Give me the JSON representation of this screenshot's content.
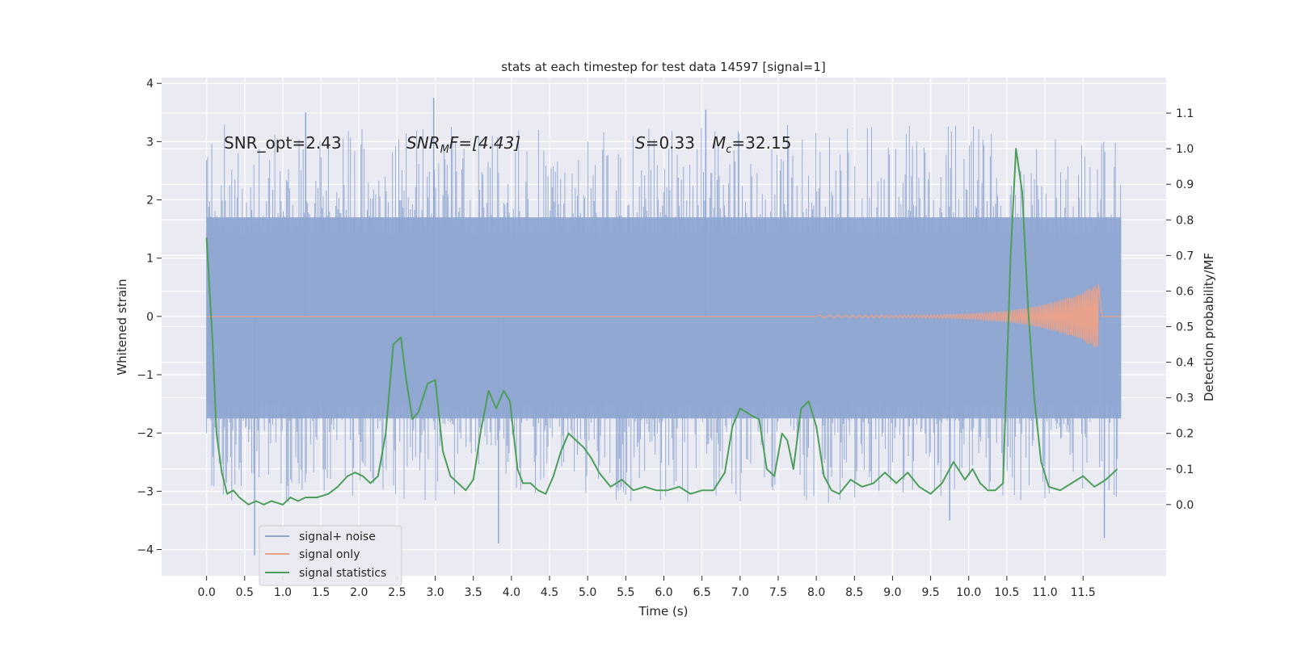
{
  "chart_data": {
    "type": "line",
    "title": "stats at each timestep for test data 14597 [signal=1]",
    "xlabel": "Time (s)",
    "ylabel": "Whitened strain",
    "ylabel_right": "Detection probability/MF",
    "xlim": [
      -0.59,
      12.59
    ],
    "ylim": [
      -4.45,
      4.1
    ],
    "ylim_right": [
      -0.2,
      1.2
    ],
    "xticks": [
      "0.0",
      "0.5",
      "1.0",
      "1.5",
      "2.0",
      "2.5",
      "3.0",
      "3.5",
      "4.0",
      "4.5",
      "5.0",
      "5.5",
      "6.0",
      "6.5",
      "7.0",
      "7.5",
      "8.0",
      "8.5",
      "9.0",
      "9.5",
      "10.0",
      "10.5",
      "11.0",
      "11.5"
    ],
    "yticks": [
      "4",
      "3",
      "2",
      "1",
      "0",
      "−1",
      "−2",
      "−3",
      "−4"
    ],
    "yticks_right": [
      "1.1",
      "1.0",
      "0.9",
      "0.8",
      "0.7",
      "0.6",
      "0.5",
      "0.4",
      "0.3",
      "0.2",
      "0.1",
      "0.0"
    ],
    "grid": true,
    "legend_placement": "lower-left",
    "annotations": {
      "snr_opt": "SNR_opt=2.43",
      "snr_mf_main": "SNR",
      "snr_mf_sub": "M",
      "snr_mf_rest": "F=[4.43]",
      "s_main": "S",
      "s_rest": "=0.33",
      "mc_main": "M",
      "mc_sub": "c",
      "mc_rest": "=32.15"
    },
    "series": [
      {
        "name": "signal+ noise",
        "color": "#8fa6d2",
        "x_range": [
          0.0,
          12.0
        ],
        "envelope_low": -1.75,
        "envelope_high": 1.7,
        "peak_spikes": [
          {
            "x": 0.63,
            "y": -4.1
          },
          {
            "x": 1.3,
            "y": 3.5
          },
          {
            "x": 2.98,
            "y": 3.75
          },
          {
            "x": 3.83,
            "y": -3.9
          },
          {
            "x": 6.55,
            "y": 3.55
          },
          {
            "x": 9.75,
            "y": -3.5
          },
          {
            "x": 11.78,
            "y": -3.8
          }
        ]
      },
      {
        "name": "signal only",
        "color": "#e8a18a",
        "note_amplitude_peak": 0.55,
        "chirp_end": 11.7
      },
      {
        "name": "signal statistics",
        "color": "#4c9e5a",
        "axis": "right",
        "x": [
          0.0,
          0.08,
          0.13,
          0.2,
          0.27,
          0.35,
          0.43,
          0.55,
          0.65,
          0.75,
          0.85,
          1.0,
          1.1,
          1.2,
          1.3,
          1.45,
          1.6,
          1.72,
          1.85,
          1.95,
          2.05,
          2.15,
          2.25,
          2.35,
          2.45,
          2.55,
          2.62,
          2.7,
          2.78,
          2.9,
          3.0,
          3.1,
          3.2,
          3.3,
          3.4,
          3.5,
          3.6,
          3.7,
          3.8,
          3.9,
          3.98,
          4.08,
          4.15,
          4.25,
          4.35,
          4.45,
          4.55,
          4.65,
          4.75,
          4.85,
          4.95,
          5.05,
          5.15,
          5.3,
          5.45,
          5.6,
          5.75,
          5.9,
          6.05,
          6.2,
          6.35,
          6.5,
          6.65,
          6.8,
          6.9,
          7.0,
          7.08,
          7.15,
          7.25,
          7.35,
          7.45,
          7.55,
          7.62,
          7.7,
          7.8,
          7.9,
          8.0,
          8.1,
          8.2,
          8.3,
          8.45,
          8.6,
          8.75,
          8.9,
          9.05,
          9.2,
          9.35,
          9.5,
          9.65,
          9.8,
          9.95,
          10.05,
          10.15,
          10.25,
          10.35,
          10.45,
          10.55,
          10.62,
          10.7,
          10.78,
          10.86,
          10.95,
          11.05,
          11.2,
          11.35,
          11.5,
          11.65,
          11.8,
          11.95
        ],
        "y": [
          0.75,
          0.45,
          0.2,
          0.09,
          0.03,
          0.04,
          0.02,
          0.0,
          0.01,
          0.0,
          0.01,
          0.0,
          0.02,
          0.01,
          0.02,
          0.02,
          0.03,
          0.05,
          0.08,
          0.09,
          0.08,
          0.06,
          0.08,
          0.2,
          0.45,
          0.47,
          0.35,
          0.24,
          0.26,
          0.34,
          0.35,
          0.15,
          0.08,
          0.06,
          0.04,
          0.07,
          0.21,
          0.32,
          0.27,
          0.32,
          0.29,
          0.1,
          0.06,
          0.06,
          0.04,
          0.03,
          0.08,
          0.15,
          0.2,
          0.18,
          0.16,
          0.13,
          0.09,
          0.05,
          0.07,
          0.04,
          0.05,
          0.04,
          0.04,
          0.05,
          0.03,
          0.04,
          0.04,
          0.09,
          0.22,
          0.27,
          0.26,
          0.25,
          0.24,
          0.1,
          0.08,
          0.2,
          0.18,
          0.1,
          0.27,
          0.29,
          0.22,
          0.08,
          0.04,
          0.03,
          0.07,
          0.05,
          0.06,
          0.09,
          0.06,
          0.09,
          0.05,
          0.03,
          0.06,
          0.12,
          0.07,
          0.1,
          0.06,
          0.04,
          0.04,
          0.06,
          0.7,
          1.0,
          0.88,
          0.55,
          0.3,
          0.12,
          0.05,
          0.04,
          0.06,
          0.08,
          0.05,
          0.07,
          0.1
        ]
      }
    ]
  }
}
